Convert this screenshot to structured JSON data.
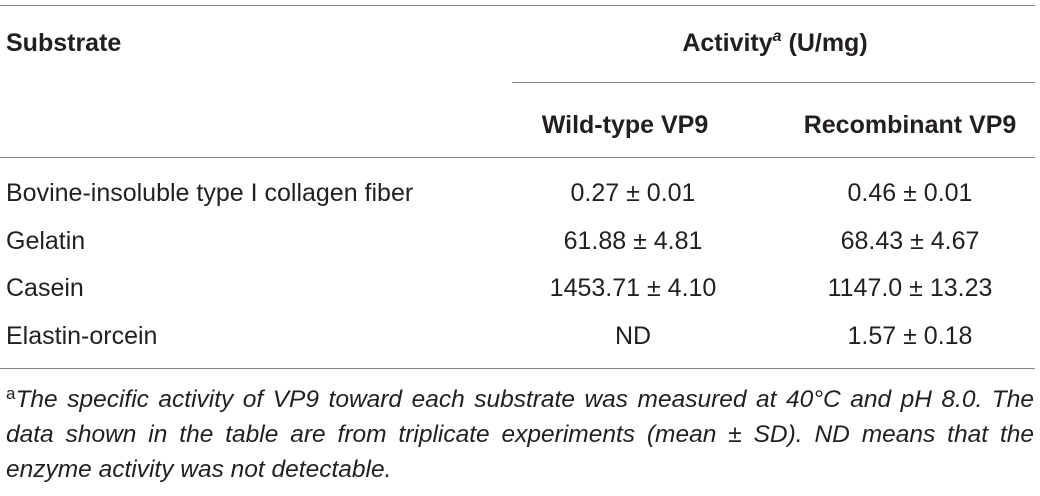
{
  "header": {
    "substrate": "Substrate",
    "activity": "Activity",
    "activity_sup": "a",
    "unit": "(U/mg)",
    "columns": [
      "Wild-type VP9",
      "Recombinant VP9"
    ]
  },
  "table": {
    "rows": [
      [
        "Bovine-insoluble type I collagen fiber",
        "0.27 ± 0.01",
        "0.46 ± 0.01"
      ],
      [
        "Gelatin",
        "61.88 ± 4.81",
        "68.43 ± 4.67"
      ],
      [
        "Casein",
        "1453.71 ± 4.10",
        "1147.0 ± 13.23"
      ],
      [
        "Elastin-orcein",
        "ND",
        "1.57 ± 0.18"
      ]
    ]
  },
  "footnote": {
    "marker": "a",
    "text": "The specific activity of VP9 toward each substrate was measured at 40°C and pH 8.0. The data shown in the table are from triplicate experiments (mean ± SD). ND means that the enzyme activity was not detectable."
  }
}
